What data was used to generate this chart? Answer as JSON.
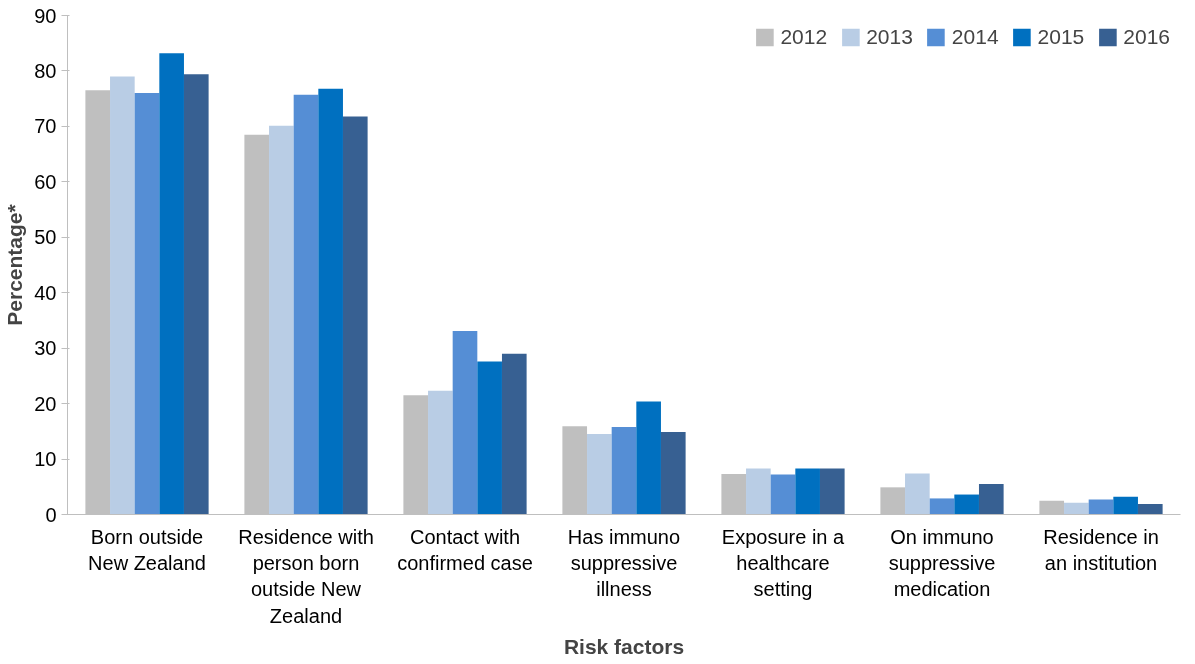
{
  "chart_data": {
    "type": "bar",
    "xlabel": "Risk factors",
    "ylabel": "Percentage*",
    "categories": [
      "Born outside New Zealand",
      "Residence with person born outside New Zealand",
      "Contact with confirmed case",
      "Has immuno suppressive illness",
      "Exposure in a healthcare setting",
      "On immuno suppressive medication",
      "Residence in an institution"
    ],
    "series": [
      {
        "name": "2012",
        "color": "#bfbfbf",
        "values": [
          76.5,
          68.5,
          21.5,
          15.9,
          7.3,
          4.9,
          2.5
        ]
      },
      {
        "name": "2013",
        "color": "#b9cde5",
        "values": [
          79.0,
          70.1,
          22.3,
          14.5,
          8.3,
          7.4,
          2.1
        ]
      },
      {
        "name": "2014",
        "color": "#558ed5",
        "values": [
          76.0,
          75.7,
          33.1,
          15.8,
          7.2,
          2.9,
          2.7
        ]
      },
      {
        "name": "2015",
        "color": "#0070c0",
        "values": [
          83.2,
          76.8,
          27.6,
          20.4,
          8.3,
          3.6,
          3.2
        ]
      },
      {
        "name": "2016",
        "color": "#376092",
        "values": [
          79.4,
          71.8,
          29.0,
          14.9,
          8.3,
          5.5,
          1.9
        ]
      }
    ],
    "ylim": [
      0,
      90
    ],
    "yticks": [
      0,
      10,
      20,
      30,
      40,
      50,
      60,
      70,
      80,
      90
    ],
    "grid": false,
    "legend": "top right"
  }
}
